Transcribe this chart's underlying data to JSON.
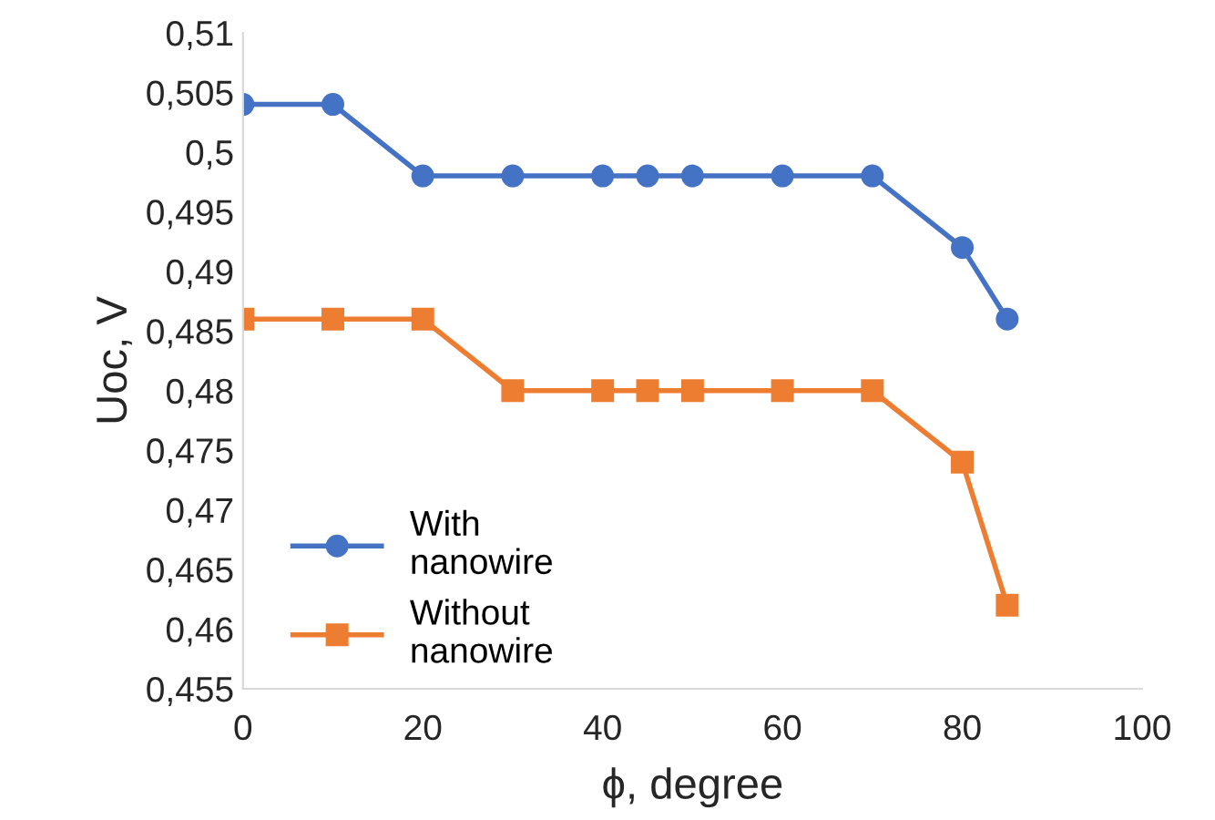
{
  "chart_data": {
    "type": "line",
    "xlabel": "ϕ, degree",
    "ylabel": "Uoc, V",
    "x": [
      0,
      10,
      20,
      30,
      40,
      45,
      50,
      60,
      70,
      80,
      85
    ],
    "series": [
      {
        "name": "With nanowire",
        "color": "#4472c4",
        "marker": "circle",
        "values": [
          0.504,
          0.504,
          0.498,
          0.498,
          0.498,
          0.498,
          0.498,
          0.498,
          0.498,
          0.492,
          0.486
        ]
      },
      {
        "name": "Without nanowire",
        "color": "#ed7d31",
        "marker": "square",
        "values": [
          0.486,
          0.486,
          0.486,
          0.48,
          0.48,
          0.48,
          0.48,
          0.48,
          0.48,
          0.474,
          0.462
        ]
      }
    ],
    "xlim": [
      0,
      100
    ],
    "xticks": [
      0,
      20,
      40,
      60,
      80,
      100
    ],
    "ylim": [
      0.455,
      0.51
    ],
    "yticks": [
      {
        "value": 0.455,
        "label": "0,455"
      },
      {
        "value": 0.46,
        "label": "0,46"
      },
      {
        "value": 0.465,
        "label": "0,465"
      },
      {
        "value": 0.47,
        "label": "0,47"
      },
      {
        "value": 0.475,
        "label": "0,475"
      },
      {
        "value": 0.48,
        "label": "0,48"
      },
      {
        "value": 0.485,
        "label": "0,485"
      },
      {
        "value": 0.49,
        "label": "0,49"
      },
      {
        "value": 0.495,
        "label": "0,495"
      },
      {
        "value": 0.5,
        "label": "0,5"
      },
      {
        "value": 0.505,
        "label": "0,505"
      },
      {
        "value": 0.51,
        "label": "0,51"
      }
    ],
    "grid": false,
    "legend": "bottom left",
    "line_style": "solid"
  }
}
